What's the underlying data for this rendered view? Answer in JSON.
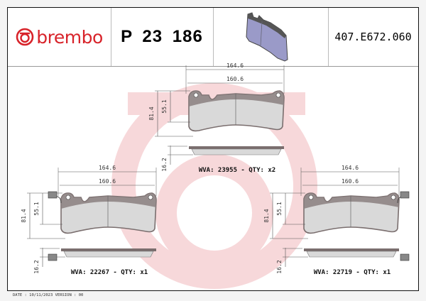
{
  "header": {
    "brand": "brembo",
    "brand_color": "#d8232a",
    "product_code": "P 23 186",
    "reference_code": "407.E672.060"
  },
  "views": [
    {
      "width_outer": "164.6",
      "width_inner": "160.6",
      "height_outer": "81.4",
      "height_inner": "55.1",
      "thickness": "16.2",
      "wva_label": "WVA: 23955 - QTY: x2",
      "sensor": false
    },
    {
      "width_outer": "164.6",
      "width_inner": "160.6",
      "height_outer": "81.4",
      "height_inner": "55.1",
      "thickness": "16.2",
      "wva_label": "WVA: 22267 - QTY: x1",
      "sensor": true
    },
    {
      "width_outer": "164.6",
      "width_inner": "160.6",
      "height_outer": "81.4",
      "height_inner": "55.1",
      "thickness": "16.2",
      "wva_label": "WVA: 22719 - QTY: x1",
      "sensor": true
    }
  ],
  "footer": {
    "text": "DATE : 10/11/2023 VERSION : 00"
  },
  "colors": {
    "pad_fill": "#d9d9d9",
    "backing": "#7a6e6e",
    "watermark": "#f7d4d6",
    "thumb_pad": "#9a9ac8"
  }
}
